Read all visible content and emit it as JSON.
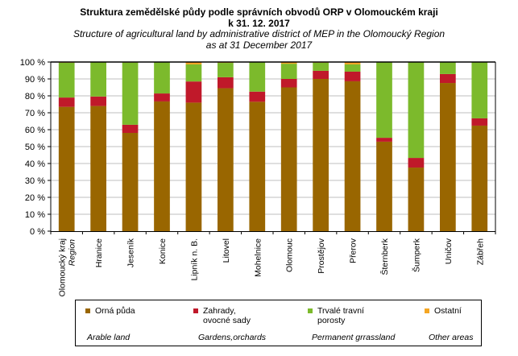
{
  "chart_data": {
    "type": "bar",
    "stacked": "percent",
    "title": "Struktura zemědělské půdy podle správních obvodů ORP v Olomouckém kraji",
    "title_line2": "k 31. 12. 2017",
    "subtitle": "Structure of agricultural land by administrative district of MEP in the Olomoucký Region",
    "subtitle_line2": "as at 31 December 2017",
    "xlabel": "",
    "ylabel": "",
    "ylim": [
      0,
      100
    ],
    "yticks": [
      0,
      10,
      20,
      30,
      40,
      50,
      60,
      70,
      80,
      90,
      100
    ],
    "ytick_labels": [
      "0 %",
      "10 %",
      "20 %",
      "30 %",
      "40 %",
      "50 %",
      "60 %",
      "70 %",
      "80 %",
      "90 %",
      "100 %"
    ],
    "grid": true,
    "categories": [
      "Olomoucký kraj",
      "Hranice",
      "Jeseník",
      "Konice",
      "Lipník n. B.",
      "Litovel",
      "Mohelnice",
      "Olomouc",
      "Prostějov",
      "Přerov",
      "Šternberk",
      "Šumperk",
      "Uničov",
      "Zábřeh"
    ],
    "category_sublabels": [
      "Region",
      "",
      "",
      "",
      "",
      "",
      "",
      "",
      "",
      "",
      "",
      "",
      "",
      ""
    ],
    "series": [
      {
        "name": "Orná půda",
        "name_en": "Arable land",
        "color": "#996600",
        "values": [
          73.5,
          74.0,
          58.1,
          76.7,
          76.0,
          84.5,
          76.5,
          85.0,
          90.0,
          88.6,
          52.9,
          37.6,
          87.6,
          62.4
        ]
      },
      {
        "name": "Zahrady,\novocné sady",
        "name_en": "Gardens,orchards",
        "color": "#C0192A",
        "values": [
          5.5,
          5.6,
          4.8,
          4.7,
          12.5,
          6.5,
          6.0,
          5.0,
          4.8,
          5.7,
          2.3,
          5.7,
          5.3,
          4.3
        ]
      },
      {
        "name": "Trvalé travní\nporosty",
        "name_en": "Permanent grrassland",
        "color": "#7CBA2C",
        "values": [
          20.6,
          20.4,
          36.8,
          18.6,
          10.1,
          8.5,
          17.5,
          9.0,
          4.8,
          4.3,
          44.8,
          56.7,
          7.1,
          33.3
        ]
      },
      {
        "name": "Ostatní",
        "name_en": "Other areas",
        "color": "#F5A623",
        "values": [
          0.4,
          0.0,
          0.3,
          0.0,
          1.4,
          0.5,
          0.0,
          1.0,
          0.4,
          1.4,
          0.0,
          0.0,
          0.0,
          0.0
        ]
      }
    ],
    "legend_position": "bottom"
  }
}
